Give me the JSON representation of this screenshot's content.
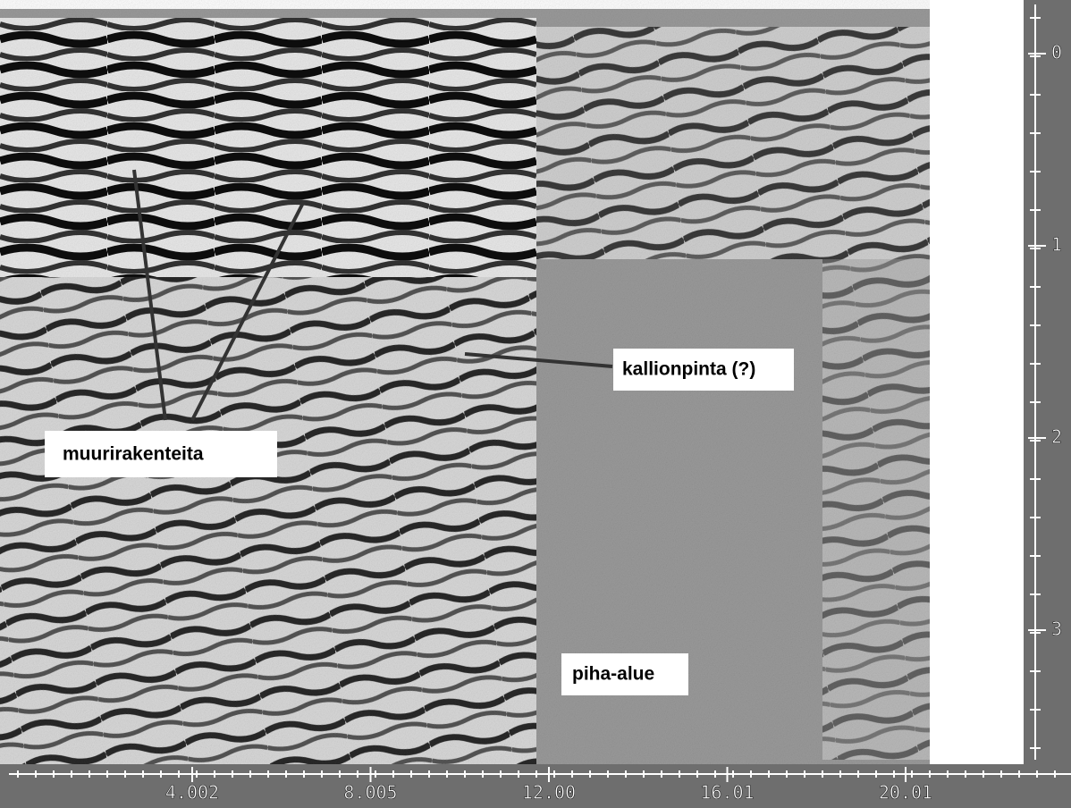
{
  "annotations": [
    "muurirakenteita",
    "kallionpinta (?)",
    "piha-alue"
  ],
  "x_axis": {
    "labels": [
      "4.002",
      "8.005",
      "12.00",
      "16.01",
      "20.01"
    ]
  },
  "y_axis": {
    "labels": [
      "0",
      "1",
      "2",
      "3"
    ]
  }
}
